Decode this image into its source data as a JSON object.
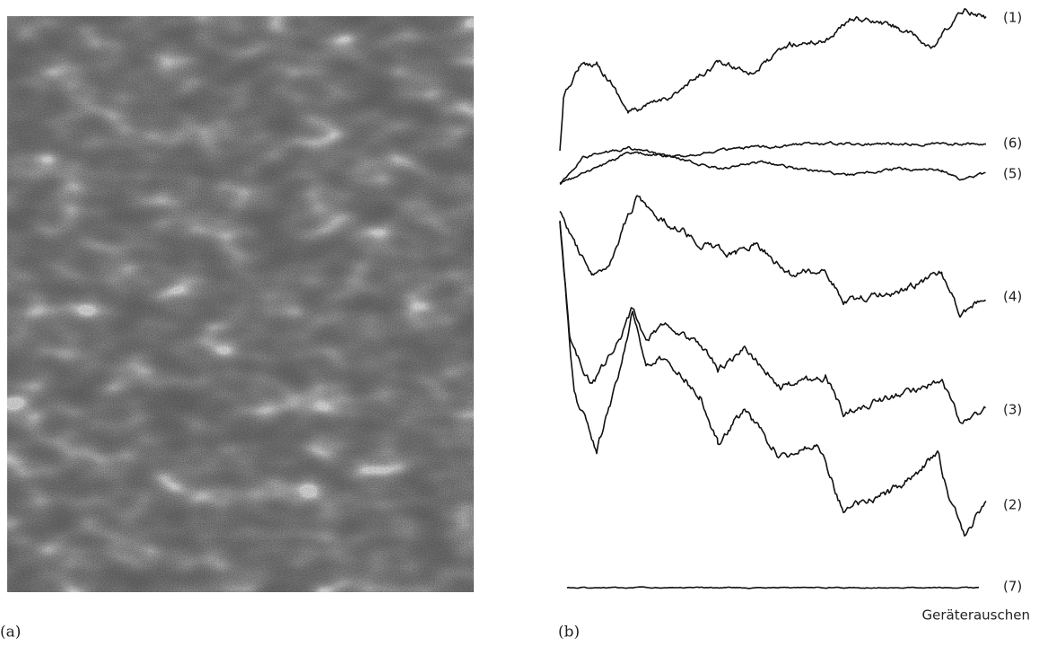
{
  "panels": [
    {
      "label": "(a)"
    },
    {
      "label": "(b)",
      "caption": "Geräterauschen",
      "traces": [
        {
          "label": "(1)"
        },
        {
          "label": "(6)"
        },
        {
          "label": "(5)"
        },
        {
          "label": "(4)"
        },
        {
          "label": "(3)"
        },
        {
          "label": "(2)"
        },
        {
          "label": "(7)"
        }
      ]
    }
  ]
}
